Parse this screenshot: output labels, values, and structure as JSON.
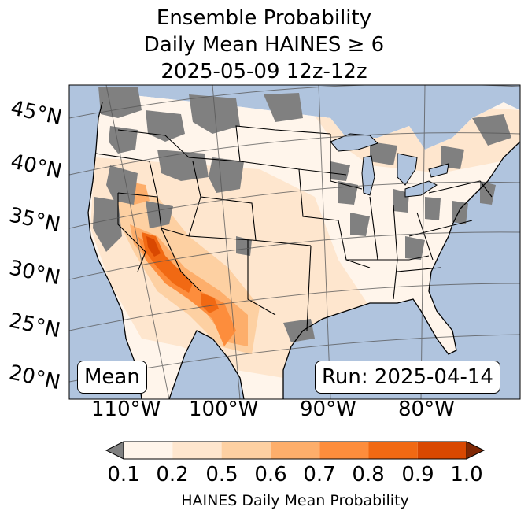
{
  "title": {
    "line1": "Ensemble Probability",
    "line2": "Daily Mean HAINES ≥ 6",
    "line3": "2025-05-09 12z-12z"
  },
  "map": {
    "latitude_labels": [
      "45°N",
      "40°N",
      "35°N",
      "30°N",
      "25°N",
      "20°N"
    ],
    "longitude_labels": [
      "110°W",
      "100°W",
      "90°W",
      "80°W"
    ],
    "ocean_color": "#b0c4de",
    "land_color": "#ffffff",
    "missing_color": "#808080",
    "statistic_label": "Mean",
    "run_label": "Run: 2025-04-14"
  },
  "colorbar": {
    "label": "HAINES Daily Mean Probability",
    "ticks": [
      "0.1",
      "0.2",
      "0.5",
      "0.6",
      "0.7",
      "0.8",
      "0.9",
      "1.0"
    ],
    "under_color": "#808080",
    "over_color": "#7f2704",
    "colors": [
      "#fff5eb",
      "#fee6ce",
      "#fdd0a2",
      "#fdae6b",
      "#fd8d3c",
      "#f16913",
      "#d94801"
    ]
  }
}
